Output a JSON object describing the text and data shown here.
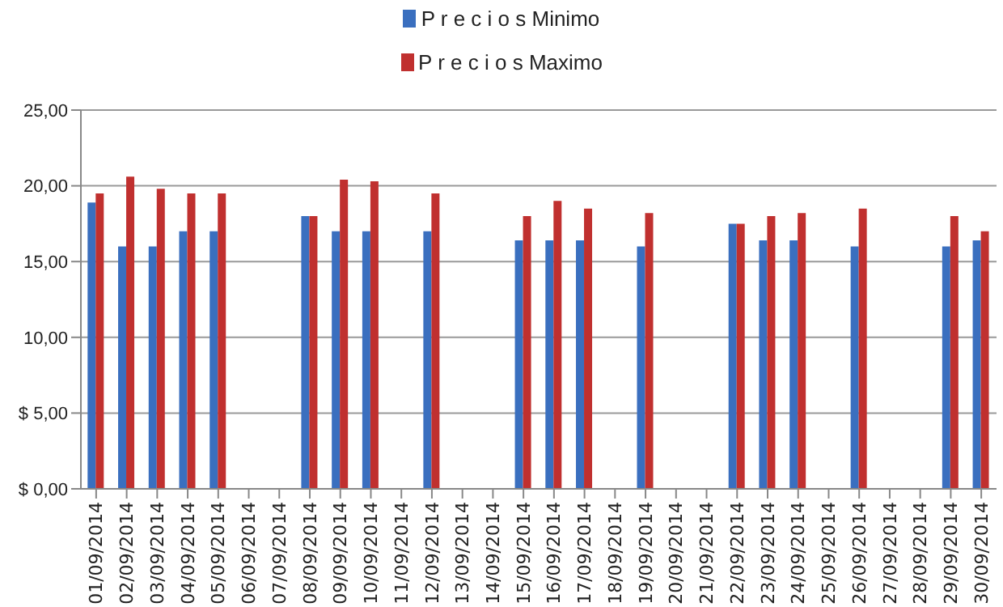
{
  "chart_data": {
    "type": "bar",
    "categories": [
      "01/09/2014",
      "02/09/2014",
      "03/09/2014",
      "04/09/2014",
      "05/09/2014",
      "06/09/2014",
      "07/09/2014",
      "08/09/2014",
      "09/09/2014",
      "10/09/2014",
      "11/09/2014",
      "12/09/2014",
      "13/09/2014",
      "14/09/2014",
      "15/09/2014",
      "16/09/2014",
      "17/09/2014",
      "18/09/2014",
      "19/09/2014",
      "20/09/2014",
      "21/09/2014",
      "22/09/2014",
      "23/09/2014",
      "24/09/2014",
      "25/09/2014",
      "26/09/2014",
      "27/09/2014",
      "28/09/2014",
      "29/09/2014",
      "30/09/2014"
    ],
    "series": [
      {
        "name": "P r e c i o s Minimo",
        "color": "#3a6fbf",
        "values": [
          18.9,
          16.0,
          16.0,
          17.0,
          17.0,
          null,
          null,
          18.0,
          17.0,
          17.0,
          null,
          17.0,
          null,
          null,
          16.4,
          16.4,
          16.4,
          null,
          16.0,
          null,
          null,
          17.5,
          16.4,
          16.4,
          null,
          16.0,
          null,
          null,
          16.0,
          16.4
        ]
      },
      {
        "name": "P r e c i o s Maximo",
        "color": "#c0302f",
        "values": [
          19.5,
          20.6,
          19.8,
          19.5,
          19.5,
          null,
          null,
          18.0,
          20.4,
          20.3,
          null,
          19.5,
          null,
          null,
          18.0,
          19.0,
          18.5,
          null,
          18.2,
          null,
          null,
          17.5,
          18.0,
          18.2,
          null,
          18.5,
          null,
          null,
          18.0,
          17.0
        ]
      }
    ],
    "ylim": [
      0,
      25
    ],
    "yticks": [
      {
        "value": 0,
        "label": "$ 0,00"
      },
      {
        "value": 5,
        "label": "$ 5,00"
      },
      {
        "value": 10,
        "label": "10,00"
      },
      {
        "value": 15,
        "label": "15,00"
      },
      {
        "value": 20,
        "label": "20,00"
      },
      {
        "value": 25,
        "label": "25,00"
      }
    ],
    "grid": "y",
    "legend": "top"
  }
}
